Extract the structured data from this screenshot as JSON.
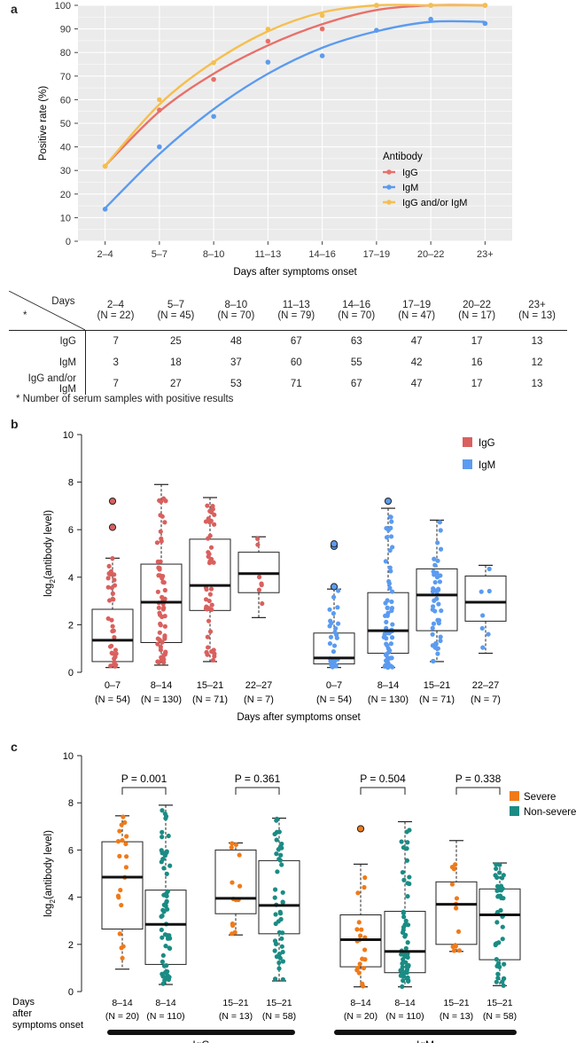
{
  "panels": {
    "a": {
      "letter": "a",
      "chart_data": {
        "type": "line",
        "categories": [
          "2–4",
          "5–7",
          "8–10",
          "11–13",
          "14–16",
          "17–19",
          "20–22",
          "23+"
        ],
        "xlabel": "Days after symptoms onset",
        "ylabel": "Positive rate (%)",
        "ylim": [
          0,
          100
        ],
        "yticks": [
          0,
          10,
          20,
          30,
          40,
          50,
          60,
          70,
          80,
          90,
          100
        ],
        "legend_title": "Antibody",
        "series": [
          {
            "name": "IgG",
            "color": "#e8706a",
            "points": [
              31.8,
              55.6,
              68.6,
              84.8,
              90.0,
              100,
              100,
              100
            ],
            "fit": [
              32,
              55,
              71,
              83,
              92,
              98,
              100,
              100
            ]
          },
          {
            "name": "IgM",
            "color": "#5b9bf0",
            "points": [
              13.6,
              40.0,
              52.9,
              75.9,
              78.6,
              89.4,
              94.1,
              92.3
            ],
            "fit": [
              14,
              37,
              56,
              71,
              82,
              89,
              93,
              93
            ]
          },
          {
            "name": "IgG and/or IgM",
            "color": "#f5bf4f",
            "points": [
              31.8,
              60.0,
              75.7,
              89.9,
              95.7,
              100,
              100,
              100
            ],
            "fit": [
              32,
              58,
              76,
              89,
              97,
              100,
              100,
              100
            ]
          }
        ]
      },
      "table": {
        "corner_label": "Days",
        "corner_note": "*",
        "columns": [
          {
            "range": "2–4",
            "n": "(N = 22)"
          },
          {
            "range": "5–7",
            "n": "(N = 45)"
          },
          {
            "range": "8–10",
            "n": "(N = 70)"
          },
          {
            "range": "11–13",
            "n": "(N = 79)"
          },
          {
            "range": "14–16",
            "n": "(N = 70)"
          },
          {
            "range": "17–19",
            "n": "(N = 47)"
          },
          {
            "range": "20–22",
            "n": "(N = 17)"
          },
          {
            "range": "23+",
            "n": "(N = 13)"
          }
        ],
        "rows": [
          {
            "label": "IgG",
            "values": [
              "7",
              "25",
              "48",
              "67",
              "63",
              "47",
              "17",
              "13"
            ]
          },
          {
            "label": "IgM",
            "values": [
              "3",
              "18",
              "37",
              "60",
              "55",
              "42",
              "16",
              "12"
            ]
          },
          {
            "label": "IgG and/or IgM",
            "values": [
              "7",
              "27",
              "53",
              "71",
              "67",
              "47",
              "17",
              "13"
            ]
          }
        ],
        "footnote": "* Number of serum samples with positive results"
      }
    },
    "b": {
      "letter": "b",
      "chart_data": {
        "type": "box",
        "ylabel_main": "log",
        "ylabel_sub": "2",
        "ylabel_rest": "(antibody level)",
        "xlabel": "Days after symptoms onset",
        "ylim": [
          0,
          10
        ],
        "yticks": [
          0,
          2,
          4,
          6,
          8,
          10
        ],
        "legend": [
          {
            "name": "IgG",
            "color": "#d9605e"
          },
          {
            "name": "IgM",
            "color": "#5b9bf0"
          }
        ],
        "groups": [
          {
            "series": "IgG",
            "label": "0–7",
            "n": "(N = 54)",
            "stats": {
              "min": 0.2,
              "q1": 0.45,
              "median": 1.35,
              "q3": 2.65,
              "max": 4.8
            },
            "outliers": [
              6.1,
              7.2
            ]
          },
          {
            "series": "IgG",
            "label": "8–14",
            "n": "(N = 130)",
            "stats": {
              "min": 0.3,
              "q1": 1.25,
              "median": 2.95,
              "q3": 4.55,
              "max": 7.9
            },
            "outliers": []
          },
          {
            "series": "IgG",
            "label": "15–21",
            "n": "(N = 71)",
            "stats": {
              "min": 0.45,
              "q1": 2.6,
              "median": 3.65,
              "q3": 5.6,
              "max": 7.35
            },
            "outliers": []
          },
          {
            "series": "IgG",
            "label": "22–27",
            "n": "(N = 7)",
            "stats": {
              "min": 2.3,
              "q1": 3.35,
              "median": 4.15,
              "q3": 5.05,
              "max": 5.7
            },
            "outliers": []
          },
          {
            "series": "IgM",
            "label": "0–7",
            "n": "(N = 54)",
            "stats": {
              "min": 0.2,
              "q1": 0.35,
              "median": 0.6,
              "q3": 1.65,
              "max": 3.5
            },
            "outliers": [
              3.6,
              5.3,
              5.4
            ]
          },
          {
            "series": "IgM",
            "label": "8–14",
            "n": "(N = 130)",
            "stats": {
              "min": 0.2,
              "q1": 0.8,
              "median": 1.75,
              "q3": 3.35,
              "max": 6.9
            },
            "outliers": [
              7.2
            ]
          },
          {
            "series": "IgM",
            "label": "15–21",
            "n": "(N = 71)",
            "stats": {
              "min": 0.45,
              "q1": 1.75,
              "median": 3.25,
              "q3": 4.35,
              "max": 6.4
            },
            "outliers": []
          },
          {
            "series": "IgM",
            "label": "22–27",
            "n": "(N = 7)",
            "stats": {
              "min": 0.8,
              "q1": 2.15,
              "median": 2.95,
              "q3": 4.05,
              "max": 4.5
            },
            "outliers": []
          }
        ]
      }
    },
    "c": {
      "letter": "c",
      "chart_data": {
        "type": "box",
        "ylabel_main": "log",
        "ylabel_sub": "2",
        "ylabel_rest": "(antibody level)",
        "xlabel_line1": "Days",
        "xlabel_line2": "after",
        "xlabel_line3": "symptoms onset",
        "ylim": [
          0,
          10
        ],
        "yticks": [
          0,
          2,
          4,
          6,
          8,
          10
        ],
        "legend": [
          {
            "name": "Severe",
            "color": "#f07a18"
          },
          {
            "name": "Non-severe",
            "color": "#1a8c84"
          }
        ],
        "pvalues": [
          "P = 0.001",
          "P = 0.361",
          "P = 0.504",
          "P = 0.338"
        ],
        "group_bars": [
          "IgG",
          "IgM"
        ],
        "groups": [
          {
            "series": "Severe",
            "label": "8–14",
            "n": "(N = 20)",
            "stats": {
              "min": 0.95,
              "q1": 2.65,
              "median": 4.85,
              "q3": 6.35,
              "max": 7.45
            },
            "outliers": []
          },
          {
            "series": "Non-severe",
            "label": "8–14",
            "n": "(N = 110)",
            "stats": {
              "min": 0.3,
              "q1": 1.15,
              "median": 2.85,
              "q3": 4.3,
              "max": 7.9
            },
            "outliers": []
          },
          {
            "series": "Severe",
            "label": "15–21",
            "n": "(N = 13)",
            "stats": {
              "min": 2.4,
              "q1": 3.3,
              "median": 3.95,
              "q3": 6.0,
              "max": 6.3
            },
            "outliers": []
          },
          {
            "series": "Non-severe",
            "label": "15–21",
            "n": "(N = 58)",
            "stats": {
              "min": 0.45,
              "q1": 2.45,
              "median": 3.65,
              "q3": 5.55,
              "max": 7.35
            },
            "outliers": []
          },
          {
            "series": "Severe",
            "label": "8–14",
            "n": "(N = 20)",
            "stats": {
              "min": 0.2,
              "q1": 1.05,
              "median": 2.2,
              "q3": 3.25,
              "max": 5.4
            },
            "outliers": [
              6.9
            ]
          },
          {
            "series": "Non-severe",
            "label": "8–14",
            "n": "(N = 110)",
            "stats": {
              "min": 0.2,
              "q1": 0.8,
              "median": 1.7,
              "q3": 3.4,
              "max": 7.2
            },
            "outliers": []
          },
          {
            "series": "Severe",
            "label": "15–21",
            "n": "(N = 13)",
            "stats": {
              "min": 1.7,
              "q1": 2.0,
              "median": 3.7,
              "q3": 4.65,
              "max": 6.4
            },
            "outliers": []
          },
          {
            "series": "Non-severe",
            "label": "15–21",
            "n": "(N = 58)",
            "stats": {
              "min": 0.25,
              "q1": 1.35,
              "median": 3.25,
              "q3": 4.35,
              "max": 5.45
            },
            "outliers": []
          }
        ]
      }
    }
  }
}
